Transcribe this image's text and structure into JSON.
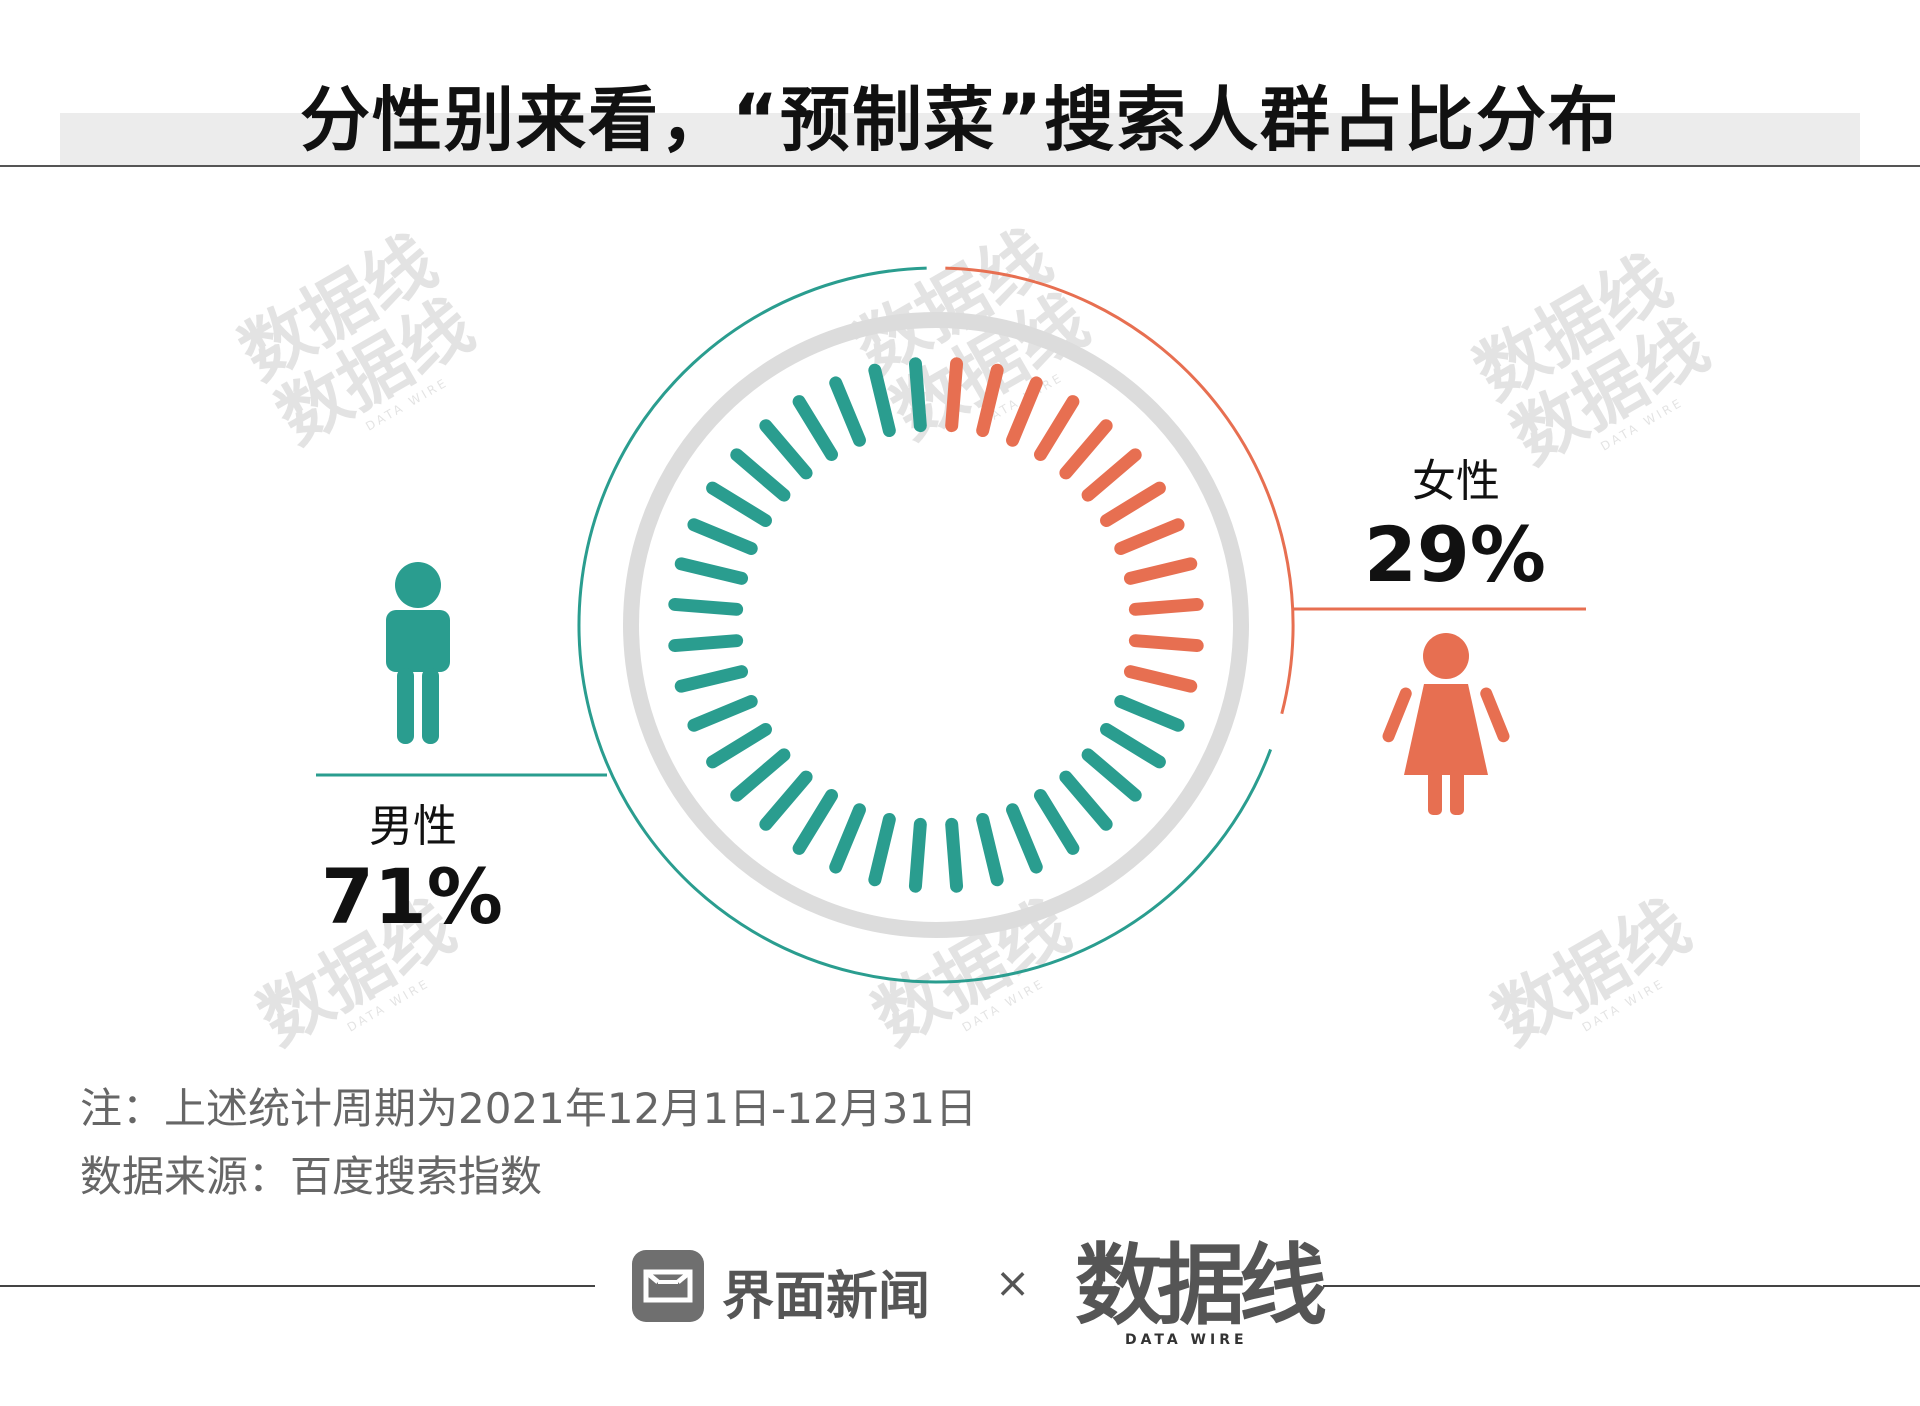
{
  "title": "分性别来看，“预制菜”搜索人群占比分布",
  "colors": {
    "male": "#2a9d8f",
    "female": "#e76f51",
    "ring": "#dcdcdc"
  },
  "chart_data": {
    "type": "pie",
    "title": "分性别来看，“预制菜”搜索人群占比分布",
    "series": [
      {
        "name": "男性",
        "value": 71,
        "label": "71%",
        "color": "#2a9d8f",
        "icon": "male-person-icon"
      },
      {
        "name": "女性",
        "value": 29,
        "label": "29%",
        "color": "#e76f51",
        "icon": "female-person-icon"
      }
    ]
  },
  "notes": {
    "period": "注：上述统计周期为2021年12月1日-12月31日",
    "source": "数据来源：百度搜索指数"
  },
  "footer": {
    "jiemian_logo": "界面新闻",
    "times": "×",
    "datawire_cn": "数据线",
    "datawire_en": "DATA WIRE"
  },
  "watermark": {
    "cn": "数据线",
    "en": "DATA WIRE"
  }
}
